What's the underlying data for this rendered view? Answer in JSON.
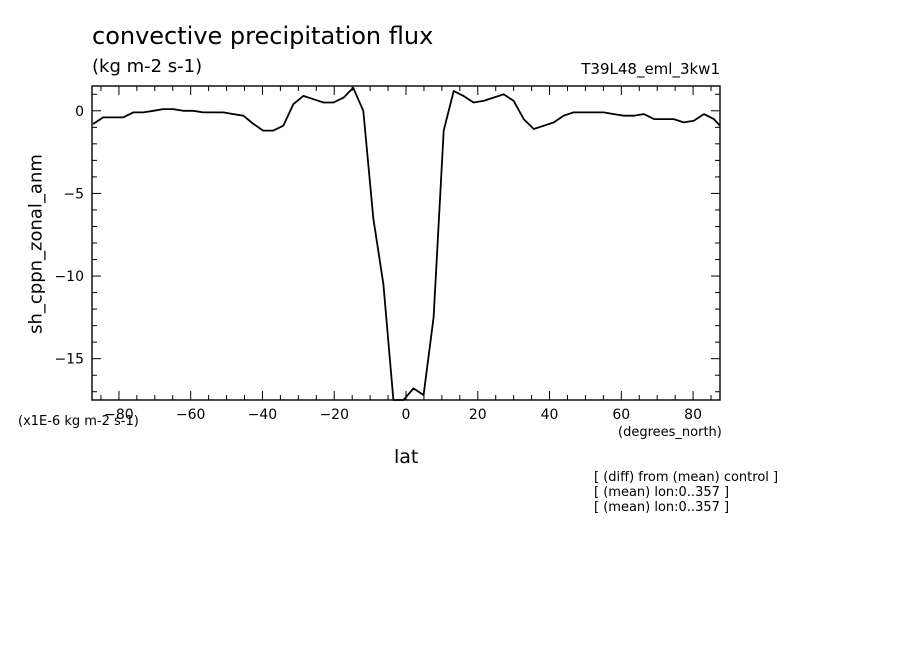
{
  "chart_data": {
    "type": "line",
    "title": "convective precipitation flux",
    "subtitle": "(kg m-2 s-1)",
    "run_label": "T39L48_eml_3kw1",
    "xlabel": "lat",
    "xunits": "(degrees_north)",
    "ylabel": "sh_cppn_zonal_anm",
    "yunits": "(x1E-6 kg m-2 s-1)",
    "xlim": [
      -87.5,
      87.5
    ],
    "ylim": [
      -17.5,
      1.5
    ],
    "xticks": [
      -80,
      -60,
      -40,
      -20,
      0,
      20,
      40,
      60,
      80
    ],
    "yticks": [
      0,
      -5,
      -10,
      -15
    ],
    "grid": false,
    "notes": [
      "[ (diff) from (mean) control ]",
      "[ (mean) lon:0..357 ]",
      "[ (mean) lon:0..357 ]"
    ],
    "series": [
      {
        "x": [
          -87.2,
          -84.4,
          -81.6,
          -78.8,
          -76.0,
          -73.2,
          -70.4,
          -67.7,
          -64.9,
          -62.1,
          -59.3,
          -56.5,
          -53.7,
          -50.9,
          -48.1,
          -45.3,
          -42.5,
          -39.8,
          -37.0,
          -34.2,
          -31.4,
          -28.6,
          -25.8,
          -23.0,
          -20.2,
          -17.4,
          -14.7,
          -11.9,
          -9.1,
          -6.3,
          -3.5,
          -0.7,
          2.1,
          4.9,
          7.7,
          10.5,
          13.3,
          16.0,
          18.8,
          21.6,
          24.4,
          27.2,
          30.0,
          32.8,
          35.6,
          38.4,
          41.2,
          43.9,
          46.7,
          49.5,
          52.3,
          55.1,
          57.9,
          60.7,
          63.5,
          66.3,
          69.1,
          71.8,
          74.6,
          77.4,
          80.2,
          83.0,
          85.8,
          87.5
        ],
        "y": [
          -0.8,
          -0.4,
          -0.4,
          -0.4,
          -0.1,
          -0.1,
          0.0,
          0.1,
          0.1,
          0.0,
          0.0,
          -0.1,
          -0.1,
          -0.1,
          -0.2,
          -0.3,
          -0.8,
          -1.2,
          -1.2,
          -0.9,
          0.4,
          0.9,
          0.7,
          0.5,
          0.5,
          0.8,
          1.4,
          0.0,
          -6.5,
          -10.5,
          -18.0,
          -17.5,
          -16.8,
          -17.2,
          -12.5,
          -1.2,
          1.2,
          0.9,
          0.5,
          0.6,
          0.8,
          1.0,
          0.6,
          -0.5,
          -1.1,
          -0.9,
          -0.7,
          -0.3,
          -0.1,
          -0.1,
          -0.1,
          -0.1,
          -0.2,
          -0.3,
          -0.3,
          -0.2,
          -0.5,
          -0.5,
          -0.5,
          -0.7,
          -0.6,
          -0.2,
          -0.5,
          -0.9
        ]
      }
    ]
  }
}
